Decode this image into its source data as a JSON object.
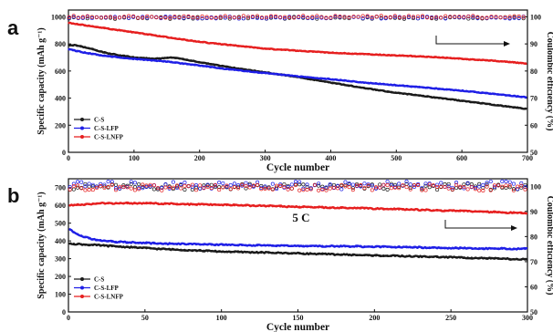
{
  "chart_data": [
    {
      "type": "line",
      "panel": "a",
      "xlabel": "Cycle number",
      "ylabel": "Specific capacity (mAh g⁻¹)",
      "y2label": "Coulombic efficiency (%)",
      "xlim": [
        0,
        700
      ],
      "ylim": [
        0,
        1050
      ],
      "y2lim": [
        50,
        102.5
      ],
      "xticks": [
        0,
        100,
        200,
        300,
        400,
        500,
        600,
        700
      ],
      "yticks": [
        0,
        200,
        400,
        600,
        800,
        1000
      ],
      "y2ticks": [
        50,
        60,
        70,
        80,
        90,
        100
      ],
      "legend_position": "bottom-left",
      "annotation": "",
      "series": [
        {
          "name": "C-S",
          "color": "#1a1a1a",
          "axis": "left",
          "x": [
            1,
            10,
            30,
            60,
            100,
            130,
            160,
            200,
            250,
            300,
            350,
            400,
            450,
            500,
            550,
            600,
            650,
            700
          ],
          "y": [
            790,
            790,
            770,
            730,
            700,
            690,
            700,
            665,
            625,
            590,
            555,
            515,
            475,
            440,
            410,
            380,
            350,
            320
          ]
        },
        {
          "name": "C-S-LFP",
          "color": "#1f1fe6",
          "axis": "left",
          "x": [
            1,
            20,
            50,
            100,
            150,
            200,
            250,
            300,
            350,
            400,
            450,
            500,
            550,
            600,
            650,
            700
          ],
          "y": [
            760,
            740,
            715,
            690,
            670,
            640,
            610,
            585,
            560,
            540,
            515,
            495,
            475,
            455,
            430,
            405
          ]
        },
        {
          "name": "C-S-LNFP",
          "color": "#e61f1f",
          "axis": "left",
          "x": [
            1,
            50,
            100,
            150,
            200,
            250,
            300,
            350,
            400,
            450,
            500,
            550,
            600,
            650,
            700
          ],
          "y": [
            955,
            920,
            885,
            850,
            815,
            790,
            765,
            750,
            735,
            725,
            715,
            705,
            690,
            675,
            655
          ]
        }
      ],
      "efficiency": [
        {
          "name": "C-S",
          "color": "#1a1a1a",
          "value": 99.6,
          "noise": 0.4
        },
        {
          "name": "C-S-LFP",
          "color": "#1f1fe6",
          "value": 99.7,
          "noise": 0.4
        },
        {
          "name": "C-S-LNFP",
          "color": "#e61f1f",
          "value": 100.0,
          "noise": 0.4
        }
      ]
    },
    {
      "type": "line",
      "panel": "b",
      "xlabel": "Cycle number",
      "ylabel": "Specific capacity (mAh g⁻¹)",
      "y2label": "Coulombic efficiency (%)",
      "xlim": [
        0,
        300
      ],
      "ylim": [
        0,
        750
      ],
      "y2lim": [
        50,
        103
      ],
      "xticks": [
        0,
        50,
        100,
        150,
        200,
        250,
        300
      ],
      "yticks": [
        0,
        100,
        200,
        300,
        400,
        500,
        600,
        700
      ],
      "y2ticks": [
        50,
        60,
        70,
        80,
        90,
        100
      ],
      "legend_position": "bottom-left",
      "annotation": "5 C",
      "series": [
        {
          "name": "C-S",
          "color": "#1a1a1a",
          "axis": "left",
          "x": [
            1,
            10,
            30,
            60,
            100,
            150,
            200,
            250,
            300
          ],
          "y": [
            385,
            380,
            370,
            355,
            340,
            330,
            318,
            308,
            295
          ]
        },
        {
          "name": "C-S-LFP",
          "color": "#1f1fe6",
          "axis": "left",
          "x": [
            1,
            5,
            15,
            30,
            60,
            100,
            150,
            200,
            250,
            300
          ],
          "y": [
            465,
            440,
            410,
            395,
            385,
            378,
            372,
            368,
            360,
            355
          ]
        },
        {
          "name": "C-S-LNFP",
          "color": "#e61f1f",
          "axis": "left",
          "x": [
            1,
            20,
            50,
            100,
            150,
            200,
            250,
            280,
            300
          ],
          "y": [
            600,
            612,
            612,
            603,
            592,
            582,
            570,
            562,
            555
          ]
        }
      ],
      "efficiency": [
        {
          "name": "C-S",
          "color": "#1a1a1a",
          "value": 99.8,
          "noise": 1.2
        },
        {
          "name": "C-S-LFP",
          "color": "#1f1fe6",
          "value": 100.4,
          "noise": 1.6
        },
        {
          "name": "C-S-LNFP",
          "color": "#e61f1f",
          "value": 99.5,
          "noise": 1.2
        }
      ]
    }
  ]
}
